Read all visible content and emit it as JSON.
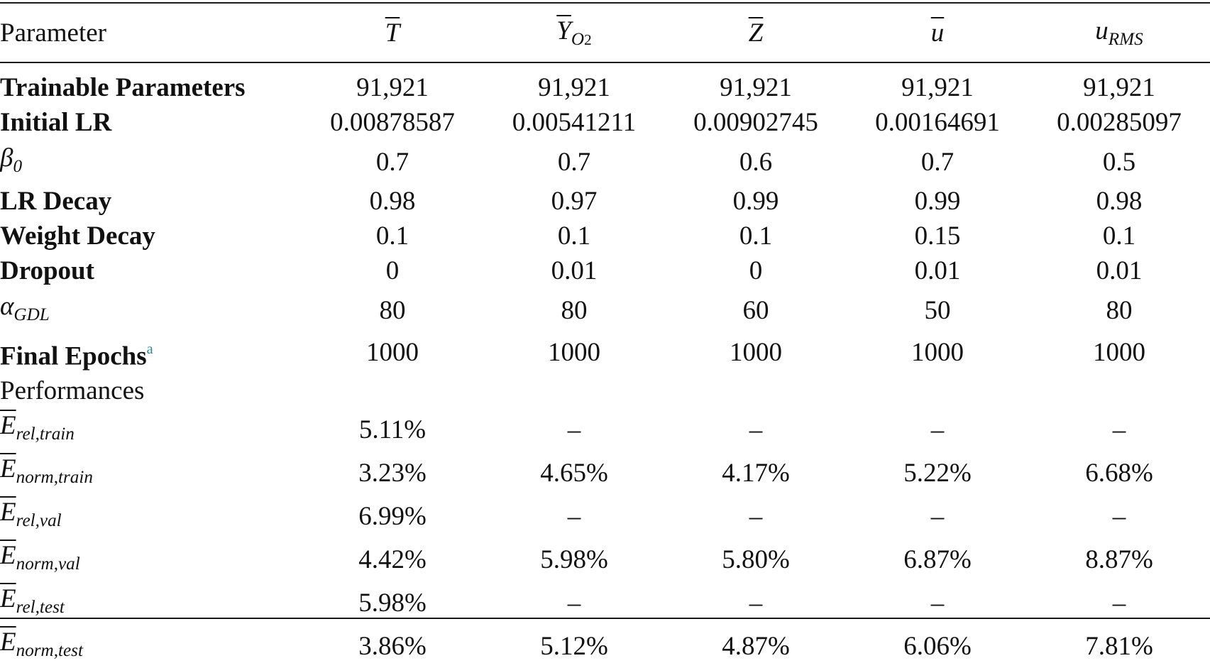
{
  "header": {
    "parameter": "Parameter",
    "columns": [
      {
        "sym": "T",
        "sub": ""
      },
      {
        "sym": "Y",
        "sub": "O",
        "sub2": "2"
      },
      {
        "sym": "Z",
        "sub": ""
      },
      {
        "sym": "u",
        "sub": ""
      },
      {
        "sym": "u",
        "sub": "RMS"
      }
    ]
  },
  "rows": [
    {
      "label": "Trainable Parameters",
      "values": [
        "91,921",
        "91,921",
        "91,921",
        "91,921",
        "91,921"
      ]
    },
    {
      "label": "Initial LR",
      "values": [
        "0.00878587",
        "0.00541211",
        "0.00902745",
        "0.00164691",
        "0.00285097"
      ]
    },
    {
      "label": "β",
      "label_sub": "0",
      "values": [
        "0.7",
        "0.7",
        "0.6",
        "0.7",
        "0.5"
      ]
    },
    {
      "label": "LR Decay",
      "values": [
        "0.98",
        "0.97",
        "0.99",
        "0.99",
        "0.98"
      ]
    },
    {
      "label": "Weight Decay",
      "values": [
        "0.1",
        "0.1",
        "0.1",
        "0.15",
        "0.1"
      ]
    },
    {
      "label": "Dropout",
      "values": [
        "0",
        "0.01",
        "0",
        "0.01",
        "0.01"
      ]
    },
    {
      "label": "α",
      "label_sub": "GDL",
      "values": [
        "80",
        "80",
        "60",
        "50",
        "80"
      ]
    },
    {
      "label": "Final Epochs",
      "label_sup": "a",
      "values": [
        "1000",
        "1000",
        "1000",
        "1000",
        "1000"
      ]
    }
  ],
  "performances": {
    "label": "Performances",
    "rows": [
      {
        "sym": "E",
        "sub": "rel,train",
        "values": [
          "5.11%",
          "–",
          "–",
          "–",
          "–"
        ]
      },
      {
        "sym": "E",
        "sub": "norm,train",
        "values": [
          "3.23%",
          "4.65%",
          "4.17%",
          "5.22%",
          "6.68%"
        ]
      },
      {
        "sym": "E",
        "sub": "rel,val",
        "values": [
          "6.99%",
          "–",
          "–",
          "–",
          "–"
        ]
      },
      {
        "sym": "E",
        "sub": "norm,val",
        "values": [
          "4.42%",
          "5.98%",
          "5.80%",
          "6.87%",
          "8.87%"
        ]
      },
      {
        "sym": "E",
        "sub": "rel,test",
        "values": [
          "5.98%",
          "–",
          "–",
          "–",
          "–"
        ]
      },
      {
        "sym": "E",
        "sub": "norm,test",
        "values": [
          "3.86%",
          "5.12%",
          "4.87%",
          "6.06%",
          "7.81%"
        ]
      }
    ]
  }
}
